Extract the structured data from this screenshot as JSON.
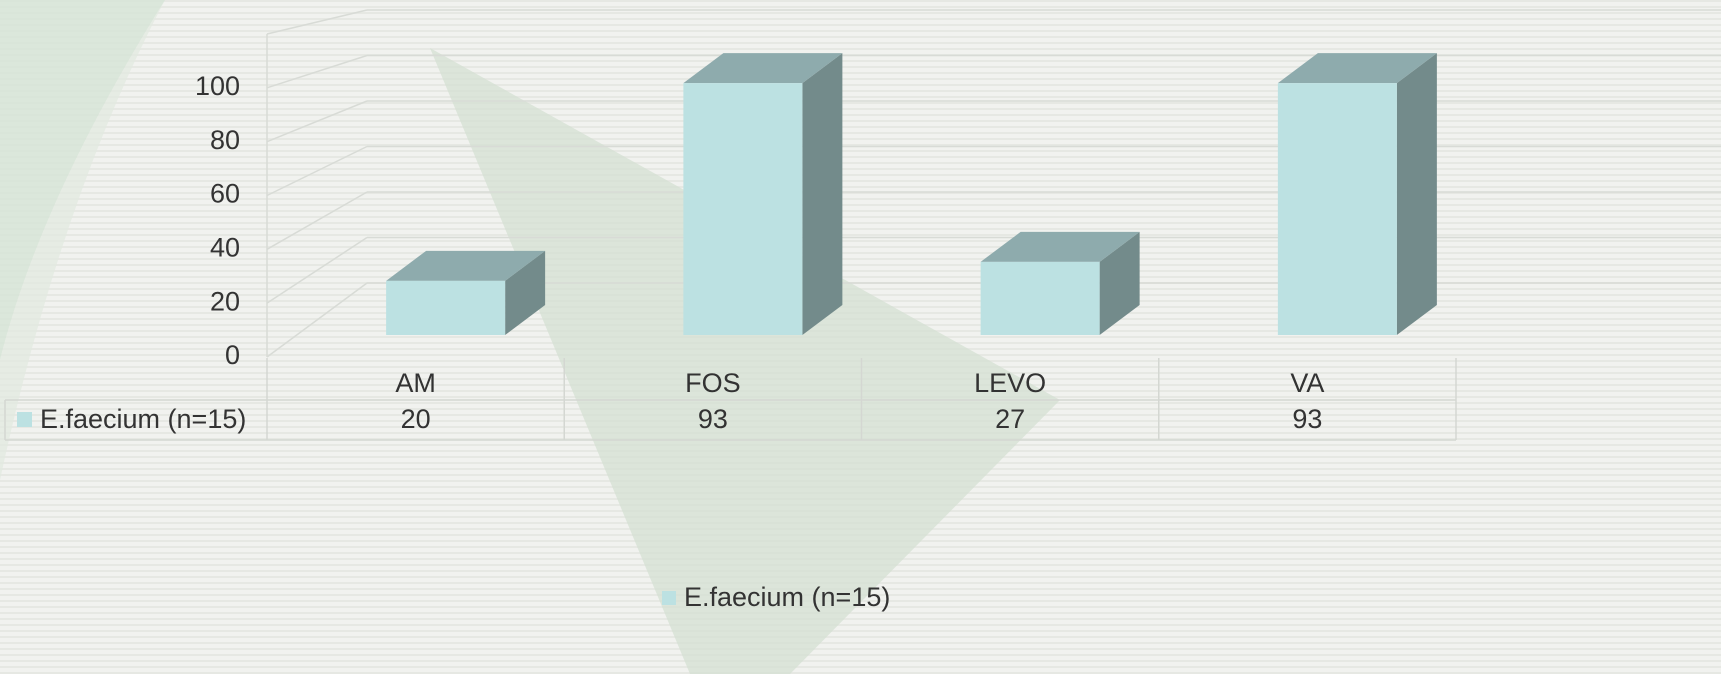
{
  "chart_data": {
    "type": "bar3d",
    "categories": [
      "AM",
      "FOS",
      "LEVO",
      "VA"
    ],
    "series": [
      {
        "name": "E.faecium (n=15)",
        "color": "#bce1e2",
        "values": [
          20,
          93,
          27,
          93
        ]
      }
    ],
    "ylim": [
      0,
      120
    ],
    "yticks": [
      0,
      20,
      40,
      60,
      80,
      100
    ],
    "grid": true,
    "data_table": true,
    "legend": "bottom"
  }
}
